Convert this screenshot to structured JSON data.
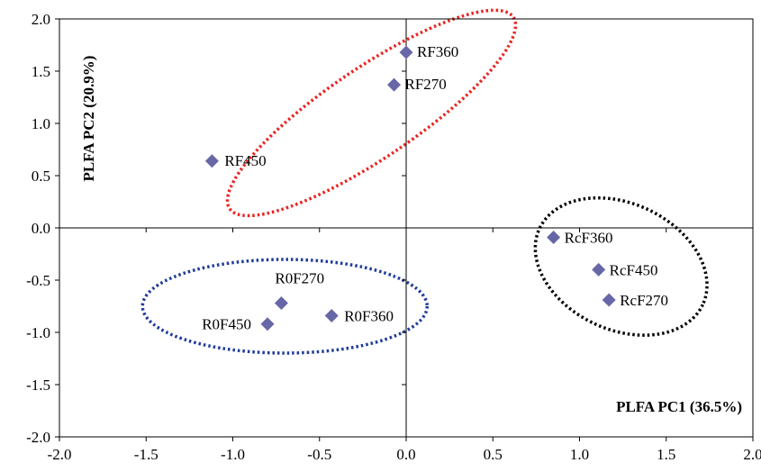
{
  "chart_data": {
    "type": "scatter",
    "xlabel": "PLFA PC1 (36.5%)",
    "ylabel": "PLFA PC2 (20.9%)",
    "xlim": [
      -2.0,
      2.0
    ],
    "ylim": [
      -2.0,
      2.0
    ],
    "xticks": [
      "-2.0",
      "-1.5",
      "-1.0",
      "-0.5",
      "0.0",
      "0.5",
      "1.0",
      "1.5",
      "2.0"
    ],
    "yticks": [
      "-2.0",
      "-1.5",
      "-1.0",
      "-0.5",
      "0.0",
      "0.5",
      "1.0",
      "1.5",
      "2.0"
    ],
    "grid": false,
    "marker_color": "#6767a8",
    "points": [
      {
        "label": "RF360",
        "x": 0.0,
        "y": 1.68
      },
      {
        "label": "RF270",
        "x": -0.07,
        "y": 1.37
      },
      {
        "label": "RF450",
        "x": -1.12,
        "y": 0.64
      },
      {
        "label": "RcF360",
        "x": 0.85,
        "y": -0.09
      },
      {
        "label": "RcF450",
        "x": 1.11,
        "y": -0.4
      },
      {
        "label": "RcF270",
        "x": 1.17,
        "y": -0.69
      },
      {
        "label": "R0F270",
        "x": -0.72,
        "y": -0.72
      },
      {
        "label": "R0F360",
        "x": -0.43,
        "y": -0.84
      },
      {
        "label": "R0F450",
        "x": -0.8,
        "y": -0.92
      }
    ],
    "groups": [
      {
        "color": "#e8231f",
        "members": [
          "RF360",
          "RF270",
          "RF450"
        ]
      },
      {
        "color": "#000000",
        "members": [
          "RcF360",
          "RcF450",
          "RcF270"
        ]
      },
      {
        "color": "#1f3c9a",
        "members": [
          "R0F270",
          "R0F360",
          "R0F450"
        ]
      }
    ]
  }
}
